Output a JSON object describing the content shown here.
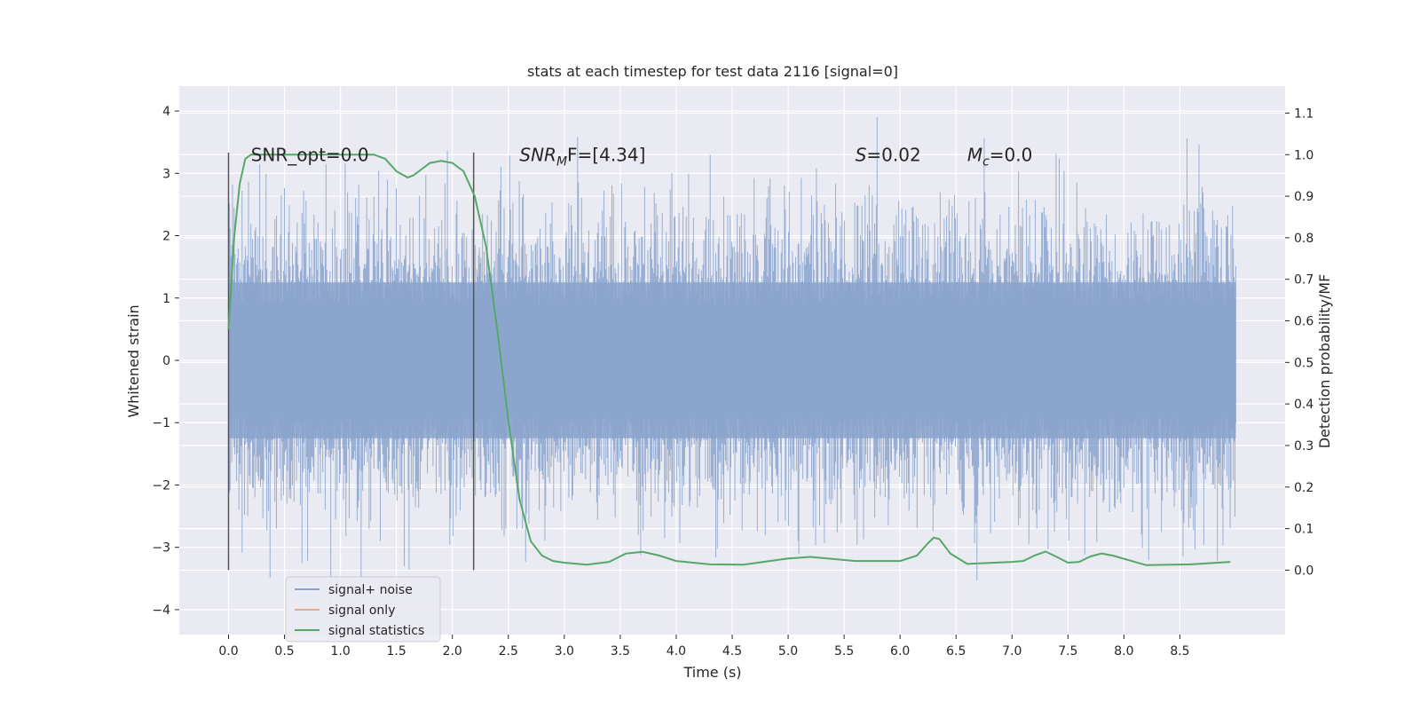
{
  "chart_data": {
    "type": "line",
    "title": "stats at each timestep for test data 2116 [signal=0]",
    "xlabel": "Time (s)",
    "ylabel": "Whitened strain",
    "y2label": "Detection probability/MF",
    "xlim": [
      -0.44,
      9.44
    ],
    "ylim": [
      -4.4,
      4.4
    ],
    "y2lim": [
      -0.155,
      1.165
    ],
    "x_ticks": [
      "0.0",
      "0.5",
      "1.0",
      "1.5",
      "2.0",
      "2.5",
      "3.0",
      "3.5",
      "4.0",
      "4.5",
      "5.0",
      "5.5",
      "6.0",
      "6.5",
      "7.0",
      "7.5",
      "8.0",
      "8.5"
    ],
    "x_tick_values": [
      0,
      0.5,
      1,
      1.5,
      2,
      2.5,
      3,
      3.5,
      4,
      4.5,
      5,
      5.5,
      6,
      6.5,
      7,
      7.5,
      8,
      8.5
    ],
    "y_ticks": [
      "4",
      "3",
      "2",
      "1",
      "0",
      "−1",
      "−2",
      "−3",
      "−4"
    ],
    "y_tick_values": [
      4,
      3,
      2,
      1,
      0,
      -1,
      -2,
      -3,
      -4
    ],
    "y2_ticks": [
      "1.1",
      "1.0",
      "0.9",
      "0.8",
      "0.7",
      "0.6",
      "0.5",
      "0.4",
      "0.3",
      "0.2",
      "0.1",
      "0.0"
    ],
    "y2_tick_values": [
      1.1,
      1.0,
      0.9,
      0.8,
      0.7,
      0.6,
      0.5,
      0.4,
      0.3,
      0.2,
      0.1,
      0.0
    ],
    "grid": true,
    "legend_placement": "lower-left",
    "series": [
      {
        "name": "signal+ noise",
        "axis": "left",
        "color": "#8aa3cc",
        "x_range": [
          0.0,
          9.0
        ],
        "description_values": "noisy whitened strain, mostly within ±2, spikes to about ±4"
      },
      {
        "name": "signal only",
        "axis": "left",
        "color": "#e5a888",
        "x": [],
        "y": []
      },
      {
        "name": "signal statistics",
        "axis": "right",
        "color": "#55a868",
        "x": [
          0.0,
          0.05,
          0.1,
          0.15,
          0.2,
          0.3,
          0.5,
          0.8,
          1.0,
          1.2,
          1.3,
          1.4,
          1.5,
          1.6,
          1.65,
          1.7,
          1.8,
          1.9,
          2.0,
          2.1,
          2.2,
          2.3,
          2.4,
          2.5,
          2.6,
          2.7,
          2.8,
          2.9,
          3.0,
          3.2,
          3.4,
          3.55,
          3.7,
          3.85,
          4.0,
          4.3,
          4.6,
          5.0,
          5.2,
          5.6,
          6.0,
          6.15,
          6.25,
          6.3,
          6.35,
          6.45,
          6.6,
          7.0,
          7.1,
          7.2,
          7.3,
          7.4,
          7.5,
          7.6,
          7.7,
          7.8,
          7.9,
          8.2,
          8.6,
          8.95
        ],
        "y": [
          0.58,
          0.8,
          0.93,
          0.99,
          1.0,
          1.0,
          1.0,
          1.0,
          1.0,
          1.0,
          1.0,
          0.99,
          0.96,
          0.945,
          0.95,
          0.96,
          0.98,
          0.985,
          0.98,
          0.96,
          0.9,
          0.78,
          0.58,
          0.36,
          0.17,
          0.07,
          0.035,
          0.022,
          0.018,
          0.013,
          0.02,
          0.04,
          0.044,
          0.035,
          0.022,
          0.014,
          0.013,
          0.028,
          0.032,
          0.022,
          0.022,
          0.035,
          0.065,
          0.078,
          0.075,
          0.04,
          0.015,
          0.02,
          0.022,
          0.035,
          0.045,
          0.032,
          0.018,
          0.02,
          0.033,
          0.04,
          0.035,
          0.012,
          0.014,
          0.02
        ]
      }
    ],
    "vertical_lines": [
      0.0,
      2.19
    ],
    "vertical_line_color": "#555555",
    "annotations": [
      {
        "key": "snr_opt",
        "x": 0.2,
        "y2": 1.0,
        "text": "SNR_opt=0.0"
      },
      {
        "key": "snr_mf",
        "x": 2.6,
        "y2": 1.0,
        "text": "SNR",
        "sub": "M",
        "rest": "F=[4.34]",
        "italic": true
      },
      {
        "key": "s",
        "x": 5.6,
        "y2": 1.0,
        "text": "S",
        "rest": "=0.02",
        "italic": true
      },
      {
        "key": "mc",
        "x": 6.6,
        "y2": 1.0,
        "text": "M",
        "sub": "c",
        "rest": "=0.0",
        "italic": true
      }
    ],
    "plot_background": "#eaeaf2",
    "grid_color": "#ffffff"
  }
}
